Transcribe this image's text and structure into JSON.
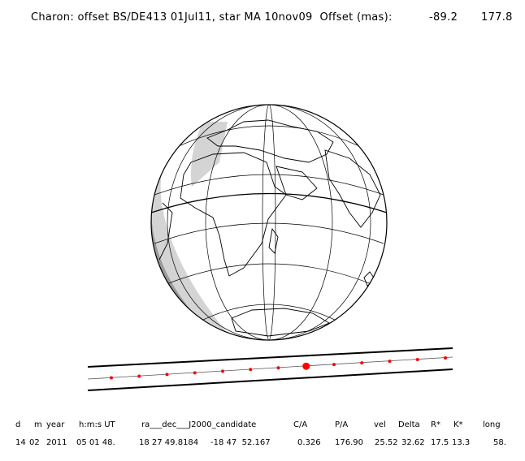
{
  "title": {
    "text": "Charon: offset BS/DE413 01Jul11, star MA 10nov09  Offset (mas):",
    "offset_ra": "-89.2",
    "offset_dec": "177.8"
  },
  "map": {
    "colors": {
      "night": "#9a9a9a",
      "twilight": "#d4d4d4",
      "day": "#ffffff",
      "lines": "#000000",
      "chord_points": "#ff0000"
    },
    "shadow_path": {
      "dot_count": 13,
      "highlight_index": 7
    }
  },
  "table": {
    "headers": [
      "d",
      "m",
      "year",
      "h:m:s UT",
      "ra___dec___J2000_candidate",
      "C/A",
      "P/A",
      "vel",
      "Delta",
      "R*",
      "K*",
      "long"
    ],
    "values": [
      "14",
      "02",
      "2011",
      "05 01 48.",
      "18 27 49.8184",
      "-18 47  52.167",
      "0.326",
      "176.90",
      "25.52",
      "32.62",
      "17.5",
      "13.3",
      "58."
    ]
  }
}
